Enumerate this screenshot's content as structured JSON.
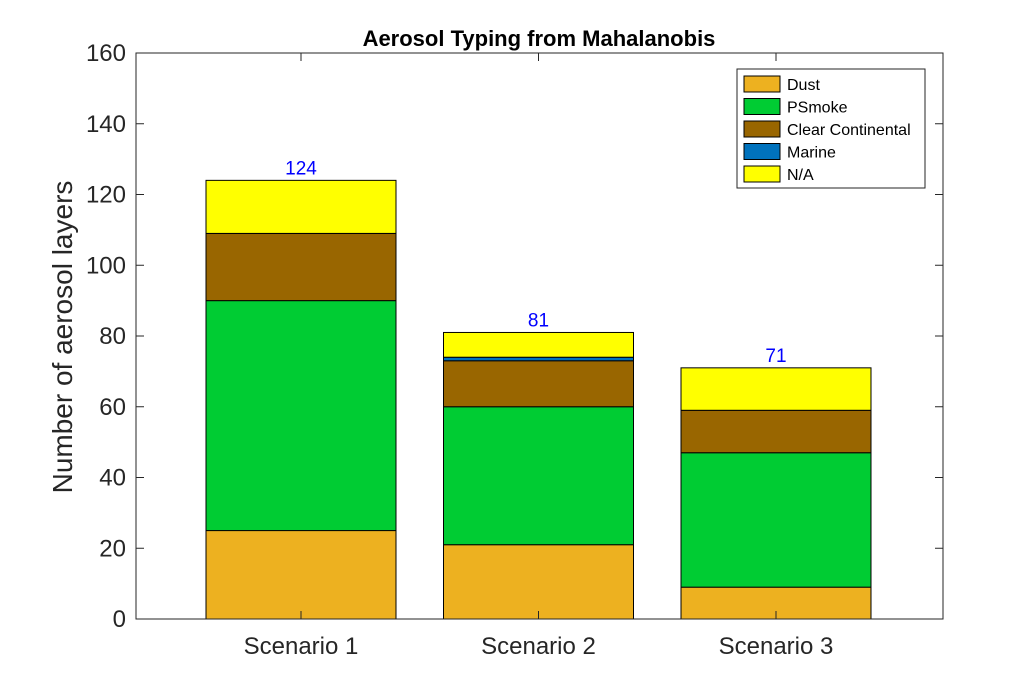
{
  "chart_data": {
    "type": "bar",
    "stacked": true,
    "title": "Aerosol Typing from Mahalanobis",
    "xlabel": "",
    "ylabel": "Number of aerosol layers",
    "ylim": [
      0,
      160
    ],
    "yticks": [
      0,
      20,
      40,
      60,
      80,
      100,
      120,
      140,
      160
    ],
    "categories": [
      "Scenario 1",
      "Scenario 2",
      "Scenario 3"
    ],
    "series": [
      {
        "name": "Dust",
        "color": "#EDB120",
        "values": [
          25,
          21,
          9
        ]
      },
      {
        "name": "PSmoke",
        "color": "#00CC33",
        "values": [
          65,
          39,
          38
        ]
      },
      {
        "name": "Clear Continental",
        "color": "#996600",
        "values": [
          19,
          13,
          12
        ]
      },
      {
        "name": "Marine",
        "color": "#0072BD",
        "values": [
          0,
          1,
          0
        ]
      },
      {
        "name": "N/A",
        "color": "#FFFF00",
        "values": [
          15,
          7,
          12
        ]
      }
    ],
    "totals": [
      "124",
      "81",
      "71"
    ],
    "totals_color": "#0000FF",
    "grid": false,
    "legend_position": "top-right"
  }
}
